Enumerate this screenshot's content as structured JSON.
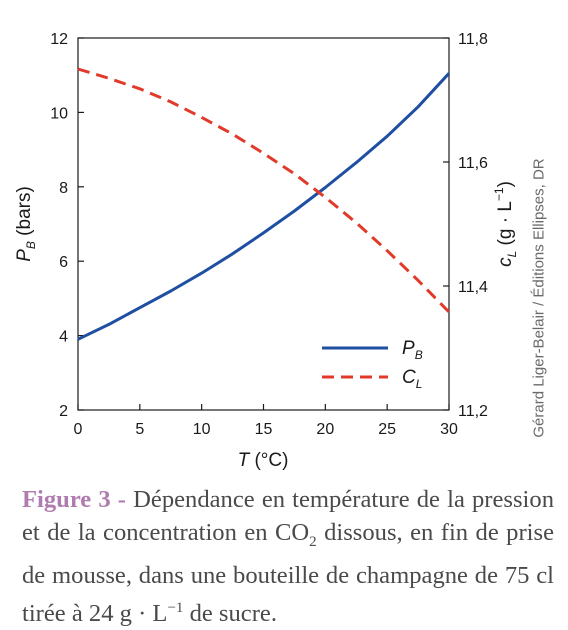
{
  "chart_data": {
    "type": "line",
    "x_axis": {
      "label_var": "T",
      "label_unit": " (°C)",
      "range": [
        0,
        30
      ],
      "ticks": [
        "0",
        "5",
        "10",
        "15",
        "20",
        "25",
        "30"
      ]
    },
    "y_left": {
      "label_var": "P",
      "label_sub": "B",
      "label_unit": " (bars)",
      "range": [
        2,
        12
      ],
      "ticks": [
        "2",
        "4",
        "6",
        "8",
        "10",
        "12"
      ]
    },
    "y_right": {
      "label_var": "c",
      "label_sub": "L",
      "label_unit_open": " (g · L",
      "label_sup": "−1",
      "label_unit_close": ")",
      "range": [
        11.2,
        11.8
      ],
      "ticks": [
        "11,2",
        "11,4",
        "11,6",
        "11,8"
      ]
    },
    "series": [
      {
        "name_var": "P",
        "name_sub": "B",
        "axis": "left",
        "color": "#1f4fa3",
        "style": "solid",
        "x": [
          0,
          2.5,
          5,
          7.5,
          10,
          12.5,
          15,
          17.5,
          20,
          22.5,
          25,
          27.5,
          30
        ],
        "y": [
          3.9,
          4.3,
          4.75,
          5.2,
          5.68,
          6.2,
          6.76,
          7.35,
          7.98,
          8.65,
          9.36,
          10.15,
          11.05
        ]
      },
      {
        "name_var": "C",
        "name_sub": "L",
        "axis": "right",
        "color": "#e23a2a",
        "style": "dashed",
        "x": [
          0,
          2.5,
          5,
          7.5,
          10,
          12.5,
          15,
          17.5,
          20,
          22.5,
          25,
          27.5,
          30
        ],
        "y": [
          11.75,
          11.735,
          11.718,
          11.697,
          11.672,
          11.645,
          11.614,
          11.581,
          11.543,
          11.502,
          11.457,
          11.409,
          11.358
        ]
      }
    ],
    "legend": {
      "position": "bottom-right"
    },
    "grid": false
  },
  "caption": {
    "label": "Figure 3 -",
    "text_1": " Dépendance en température de la pression et de la concentration en CO",
    "sub": "2",
    "text_2": " dissous, en fin de prise de mousse, dans une bouteille de champagne de 75 cl tirée à 24 g · L",
    "sup": "−1",
    "text_3": " de sucre."
  },
  "credit": "Gérard Liger-Belair / Éditions Ellipses, DR"
}
